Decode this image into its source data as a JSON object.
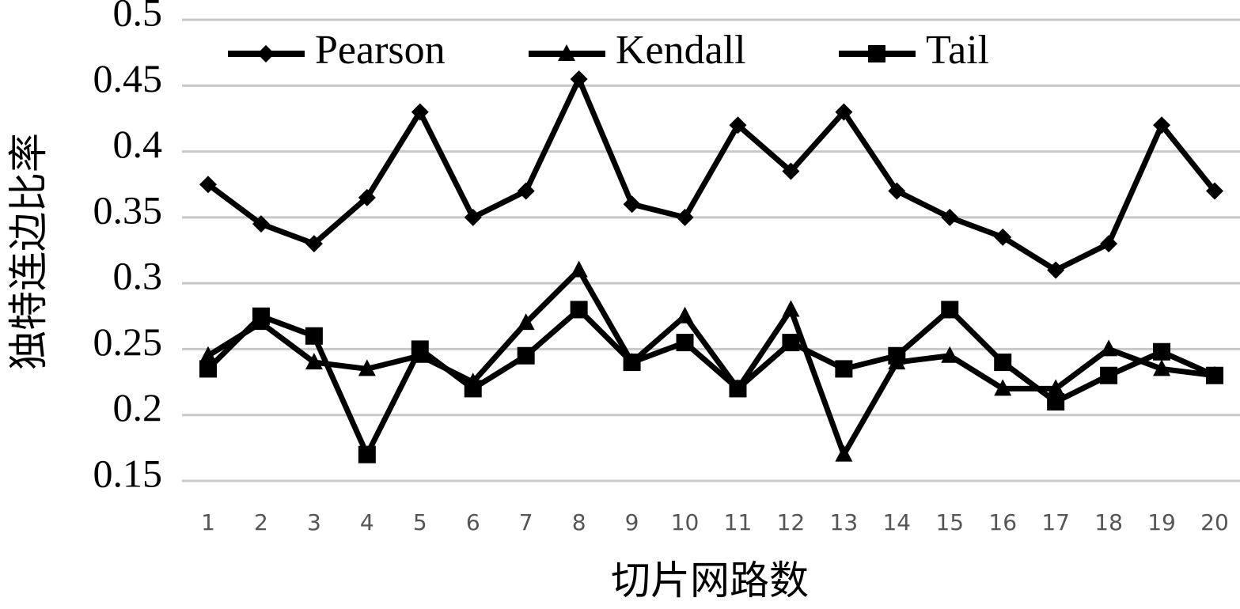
{
  "chart_data": {
    "type": "line",
    "x_label": "切片网路数",
    "y_label": "独特连边比率",
    "categories": [
      "1",
      "2",
      "3",
      "4",
      "5",
      "6",
      "7",
      "8",
      "9",
      "10",
      "11",
      "12",
      "13",
      "14",
      "15",
      "16",
      "17",
      "18",
      "19",
      "20"
    ],
    "series": [
      {
        "name": "Pearson",
        "color": "#000000",
        "marker": "diamond",
        "values": [
          0.375,
          0.345,
          0.33,
          0.365,
          0.43,
          0.35,
          0.37,
          0.455,
          0.36,
          0.35,
          0.42,
          0.385,
          0.43,
          0.37,
          0.35,
          0.335,
          0.31,
          0.33,
          0.42,
          0.37
        ]
      },
      {
        "name": "Kendall",
        "color": "#000000",
        "marker": "triangle",
        "values": [
          0.245,
          0.27,
          0.24,
          0.235,
          0.245,
          0.225,
          0.27,
          0.31,
          0.24,
          0.275,
          0.22,
          0.28,
          0.17,
          0.24,
          0.245,
          0.22,
          0.22,
          0.25,
          0.235,
          0.23
        ]
      },
      {
        "name": "Tail",
        "color": "#000000",
        "marker": "square",
        "values": [
          0.235,
          0.275,
          0.26,
          0.17,
          0.25,
          0.22,
          0.245,
          0.28,
          0.24,
          0.255,
          0.22,
          0.255,
          0.235,
          0.245,
          0.28,
          0.24,
          0.21,
          0.23,
          0.248,
          0.23
        ]
      }
    ],
    "ylim": [
      0.15,
      0.5
    ],
    "yticks": [
      0.15,
      0.2,
      0.25,
      0.3,
      0.35,
      0.4,
      0.45,
      0.5
    ],
    "grid": true,
    "legend": "top"
  }
}
